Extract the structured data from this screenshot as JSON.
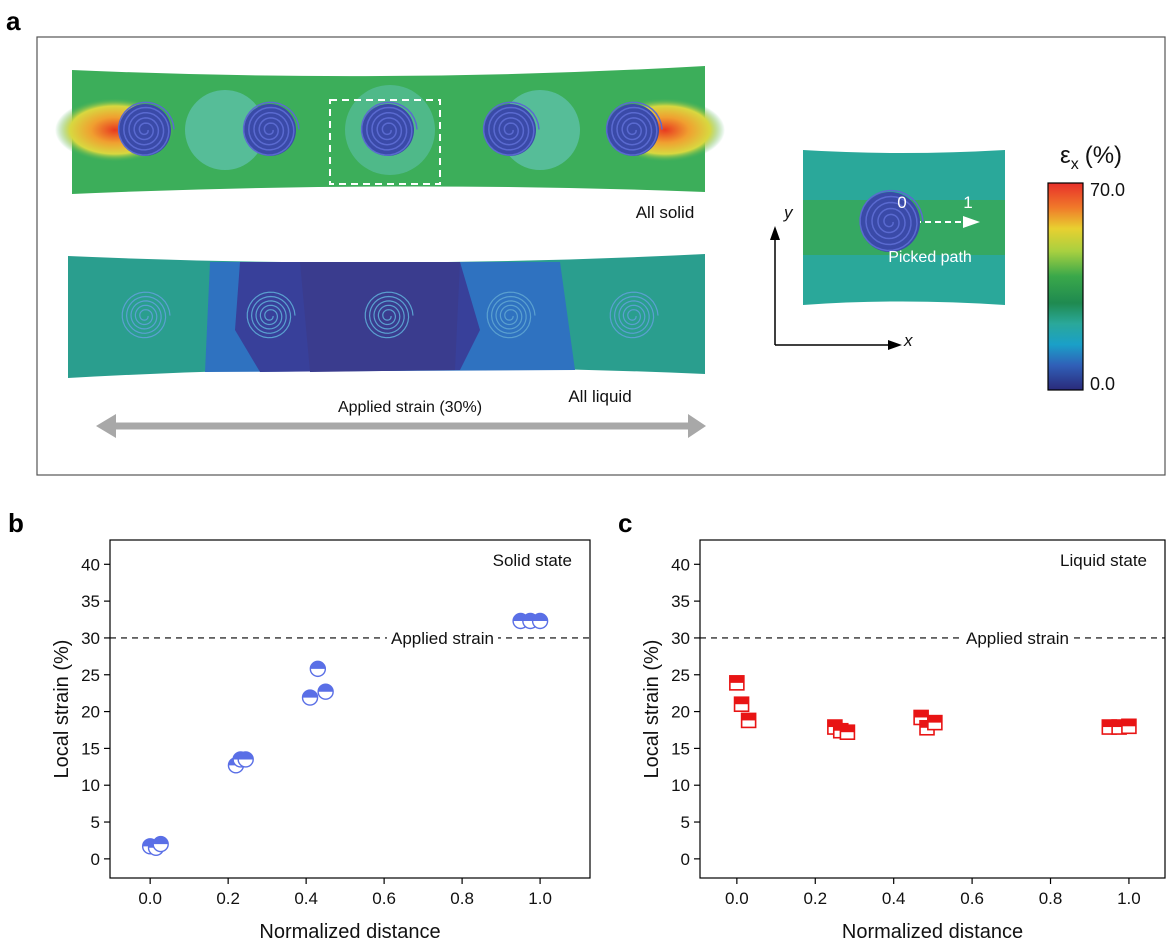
{
  "panel_a": {
    "label": "a",
    "solid_label": "All solid",
    "liquid_label": "All liquid",
    "strain_label": "Applied strain (30%)",
    "path_start": "0",
    "path_end": "1",
    "path_label": "Picked path",
    "y_axis": "y",
    "x_axis": "x",
    "colorbar": {
      "symbol": "ε",
      "subscript": "x",
      "unit": "(%)",
      "max": "70.0",
      "min": "0.0"
    }
  },
  "chart_data": [
    {
      "type": "scatter",
      "label": "b",
      "annotation": "Solid state",
      "x_label": "Normalized distance",
      "y_label": "Local strain (%)",
      "reference_line": {
        "value": 30,
        "label": "Applied strain"
      },
      "series": [
        {
          "color": "#5a6fe6",
          "marker": "half-circle",
          "x": [
            0.0,
            0.015,
            0.027,
            0.22,
            0.232,
            0.245,
            0.41,
            0.43,
            0.45,
            0.95,
            0.975,
            1.0
          ],
          "values": [
            1.7,
            1.5,
            2.0,
            12.7,
            13.5,
            13.5,
            21.9,
            25.8,
            22.7,
            32.3,
            32.3,
            32.3
          ]
        }
      ],
      "xlim": [
        -0.103,
        1.128
      ],
      "ylim": [
        -2.6,
        43.3
      ],
      "xticks": [
        {
          "value": 0,
          "label": "0.0"
        },
        0.2,
        0.4,
        0.6,
        0.8,
        {
          "value": 1,
          "label": "1.0"
        }
      ],
      "yticks": [
        0,
        5,
        10,
        15,
        20,
        25,
        30,
        35,
        40
      ]
    },
    {
      "type": "scatter",
      "label": "c",
      "annotation": "Liquid state",
      "x_label": "Normalized distance",
      "y_label": "Local strain (%)",
      "reference_line": {
        "value": 30,
        "label": "Applied strain"
      },
      "series": [
        {
          "color": "#e81414",
          "marker": "half-square",
          "x": [
            0.0,
            0.012,
            0.03,
            0.25,
            0.265,
            0.282,
            0.47,
            0.485,
            0.505,
            0.95,
            0.975,
            1.0
          ],
          "values": [
            23.9,
            21.0,
            18.8,
            17.9,
            17.4,
            17.2,
            19.2,
            17.8,
            18.5,
            17.9,
            17.9,
            18.0
          ]
        }
      ],
      "xlim": [
        -0.094,
        1.092
      ],
      "ylim": [
        -2.6,
        43.3
      ],
      "xticks": [
        {
          "value": 0,
          "label": "0.0"
        },
        0.2,
        0.4,
        0.6,
        0.8,
        {
          "value": 1,
          "label": "1.0"
        }
      ],
      "yticks": [
        0,
        5,
        10,
        15,
        20,
        25,
        30,
        35,
        40
      ]
    }
  ]
}
